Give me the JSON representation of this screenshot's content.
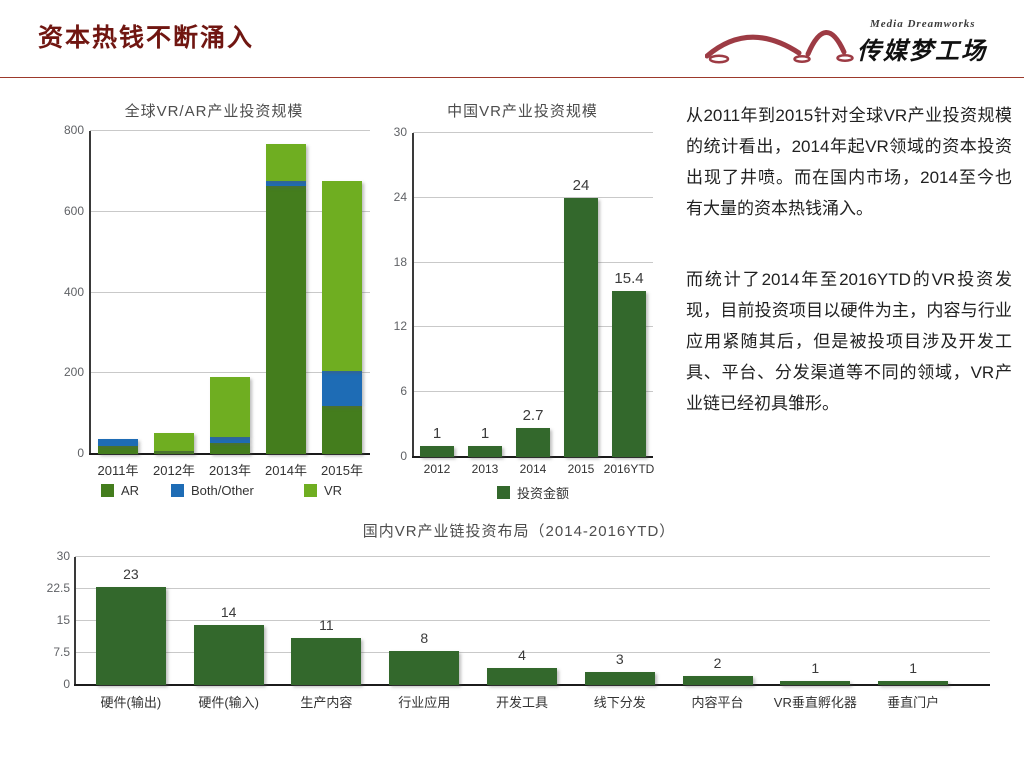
{
  "header": {
    "title": "资本热钱不断涌入",
    "logo": {
      "tagline": "Media Dreamworks",
      "name": "传媒梦工场"
    }
  },
  "colors": {
    "title_red": "#701611",
    "divider_red": "#9c392b",
    "logo_red": "#9d3b44",
    "ar_dark_green": "#447d1d",
    "vr_light_green": "#6fae21",
    "both_other_blue": "#1e6cb5",
    "forest_green": "#33682c"
  },
  "text_panel": {
    "paragraphs": [
      "从2011年到2015针对全球VR产业投资规模的统计看出，2014年起VR领域的资本投资出现了井喷。而在国内市场，2014至今也有大量的资本热钱涌入。",
      "而统计了2014年至2016YTD的VR投资发现，目前投资项目以硬件为主，内容与行业应用紧随其后，但是被投项目涉及开发工具、平台、分发渠道等不同的领域，VR产业链已经初具雏形。"
    ]
  },
  "chart_data": [
    {
      "id": "global",
      "type": "bar",
      "stacked": true,
      "title": "全球VR/AR产业投资规模",
      "categories": [
        "2011年",
        "2012年",
        "2013年",
        "2014年",
        "2015年"
      ],
      "series": [
        {
          "name": "AR",
          "color": "#447d1d",
          "values": [
            20,
            8,
            28,
            665,
            120
          ]
        },
        {
          "name": "Both/Other",
          "color": "#1e6cb5",
          "values": [
            17,
            0,
            15,
            10,
            85
          ]
        },
        {
          "name": "VR",
          "color": "#6fae21",
          "values": [
            0,
            45,
            147,
            93,
            470
          ]
        }
      ],
      "ylim": [
        0,
        800
      ],
      "yticks": [
        0,
        200,
        400,
        600,
        800
      ],
      "grid": true,
      "legend_position": "bottom",
      "value_labels": false
    },
    {
      "id": "china",
      "type": "bar",
      "stacked": false,
      "title": "中国VR产业投资规模",
      "categories": [
        "2012",
        "2013",
        "2014",
        "2015",
        "2016YTD"
      ],
      "series": [
        {
          "name": "投资金额",
          "color": "#33682c",
          "values": [
            1,
            1,
            2.7,
            24,
            15.4
          ]
        }
      ],
      "ylim": [
        0,
        30
      ],
      "yticks": [
        0,
        6,
        12,
        18,
        24,
        30
      ],
      "grid": true,
      "legend_position": "bottom",
      "value_labels": true
    },
    {
      "id": "chain",
      "type": "bar",
      "stacked": false,
      "title": "国内VR产业链投资布局（2014-2016YTD）",
      "categories": [
        "硬件(输出)",
        "硬件(输入)",
        "生产内容",
        "行业应用",
        "开发工具",
        "线下分发",
        "内容平台",
        "VR垂直孵化器",
        "垂直门户"
      ],
      "series": [
        {
          "name": "",
          "color": "#33682c",
          "values": [
            23,
            14,
            11,
            8,
            4,
            3,
            2,
            1,
            1
          ]
        }
      ],
      "ylim": [
        0,
        30
      ],
      "yticks": [
        0,
        7.5,
        15,
        22.5,
        30
      ],
      "grid": true,
      "legend_position": "none",
      "value_labels": true
    }
  ]
}
